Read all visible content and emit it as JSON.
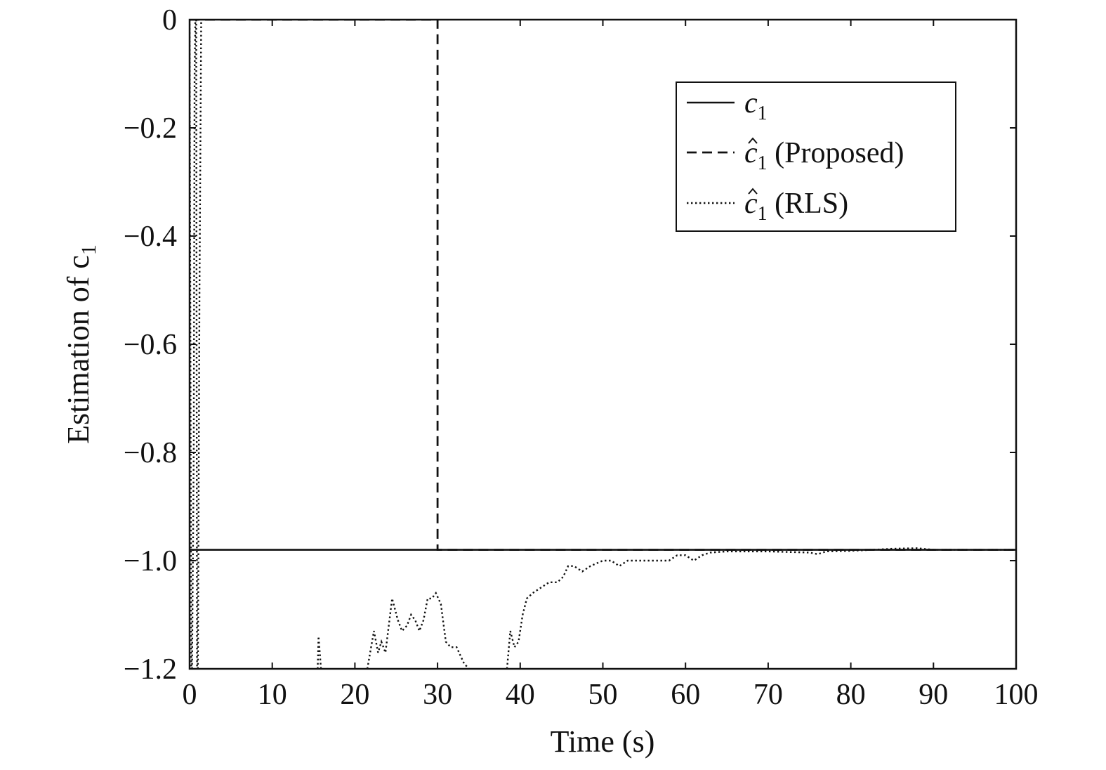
{
  "chart_data": {
    "type": "line",
    "xlabel": "Time (s)",
    "ylabel": "Estimation of c",
    "ylabel_subscript": "1",
    "xlim": [
      0,
      100
    ],
    "ylim": [
      -1.2,
      0
    ],
    "x_ticks": [
      0,
      10,
      20,
      30,
      40,
      50,
      60,
      70,
      80,
      90,
      100
    ],
    "x_tick_labels": [
      "0",
      "10",
      "20",
      "30",
      "40",
      "50",
      "60",
      "70",
      "80",
      "90",
      "100"
    ],
    "y_ticks": [
      0,
      -0.2,
      -0.4,
      -0.6,
      -0.8,
      -1.0,
      -1.2
    ],
    "y_tick_labels": [
      "0",
      "−0.2",
      "−0.4",
      "−0.6",
      "−0.8",
      "−1.0",
      "−1.2"
    ],
    "grid": false,
    "legend_position": "top-right",
    "series": [
      {
        "name": "c",
        "name_subscript": "1",
        "name_suffix": "",
        "hat": false,
        "style": "solid",
        "points": [
          [
            0,
            -0.98
          ],
          [
            100,
            -0.98
          ]
        ]
      },
      {
        "name": "c",
        "name_subscript": "1",
        "name_suffix": " (Proposed)",
        "hat": true,
        "style": "dashed",
        "points": [
          [
            0,
            0
          ],
          [
            30,
            0
          ],
          [
            30,
            -0.98
          ],
          [
            100,
            -0.98
          ]
        ]
      },
      {
        "name": "c",
        "name_subscript": "1",
        "name_suffix": " (RLS)",
        "hat": true,
        "style": "dotted",
        "segments": [
          [
            [
              0,
              0
            ],
            [
              0.2,
              -1.2
            ]
          ],
          [
            [
              0.3,
              -1.2
            ],
            [
              0.5,
              -0.8
            ],
            [
              0.6,
              -0.1
            ],
            [
              0.7,
              0
            ]
          ],
          [
            [
              0.8,
              0
            ],
            [
              0.9,
              -1.2
            ]
          ],
          [
            [
              1.0,
              -1.2
            ],
            [
              1.2,
              -0.5
            ],
            [
              1.4,
              0
            ]
          ],
          [
            [
              15.5,
              -1.2
            ],
            [
              15.6,
              -1.14
            ],
            [
              15.9,
              -1.2
            ]
          ],
          [
            [
              21.5,
              -1.2
            ],
            [
              22.3,
              -1.13
            ],
            [
              22.8,
              -1.17
            ],
            [
              23.2,
              -1.15
            ],
            [
              23.7,
              -1.17
            ],
            [
              24.5,
              -1.07
            ],
            [
              25.2,
              -1.11
            ],
            [
              25.7,
              -1.13
            ],
            [
              26.3,
              -1.12
            ],
            [
              26.8,
              -1.1
            ],
            [
              27.3,
              -1.11
            ],
            [
              27.8,
              -1.13
            ],
            [
              28.3,
              -1.11
            ],
            [
              28.8,
              -1.07
            ],
            [
              29.3,
              -1.07
            ],
            [
              29.8,
              -1.06
            ],
            [
              30.4,
              -1.08
            ],
            [
              31.0,
              -1.15
            ],
            [
              31.6,
              -1.16
            ],
            [
              32.3,
              -1.16
            ],
            [
              33.2,
              -1.19
            ],
            [
              33.8,
              -1.2
            ]
          ],
          [
            [
              38.4,
              -1.2
            ],
            [
              38.8,
              -1.13
            ],
            [
              39.3,
              -1.16
            ],
            [
              39.8,
              -1.15
            ],
            [
              40.3,
              -1.1
            ],
            [
              40.8,
              -1.07
            ],
            [
              41.5,
              -1.06
            ],
            [
              42.5,
              -1.05
            ],
            [
              43.5,
              -1.04
            ],
            [
              44.5,
              -1.04
            ],
            [
              45.2,
              -1.03
            ],
            [
              45.8,
              -1.01
            ],
            [
              46.5,
              -1.01
            ],
            [
              47.5,
              -1.02
            ],
            [
              48.5,
              -1.01
            ],
            [
              50.0,
              -1.0
            ],
            [
              51.0,
              -1.0
            ],
            [
              52.0,
              -1.01
            ],
            [
              53.0,
              -1.0
            ],
            [
              54.0,
              -1.0
            ],
            [
              55.0,
              -1.0
            ],
            [
              57.0,
              -1.0
            ],
            [
              58.0,
              -1.0
            ],
            [
              59.0,
              -0.99
            ],
            [
              60.0,
              -0.99
            ],
            [
              61.0,
              -1.0
            ],
            [
              62.0,
              -0.99
            ],
            [
              63.0,
              -0.985
            ],
            [
              65.0,
              -0.983
            ],
            [
              70.0,
              -0.983
            ],
            [
              75.0,
              -0.985
            ],
            [
              76.0,
              -0.988
            ],
            [
              77.0,
              -0.983
            ],
            [
              80.0,
              -0.982
            ],
            [
              85.0,
              -0.978
            ],
            [
              88.0,
              -0.977
            ],
            [
              90.0,
              -0.98
            ],
            [
              95.0,
              -0.98
            ],
            [
              100.0,
              -0.98
            ]
          ]
        ]
      }
    ]
  }
}
